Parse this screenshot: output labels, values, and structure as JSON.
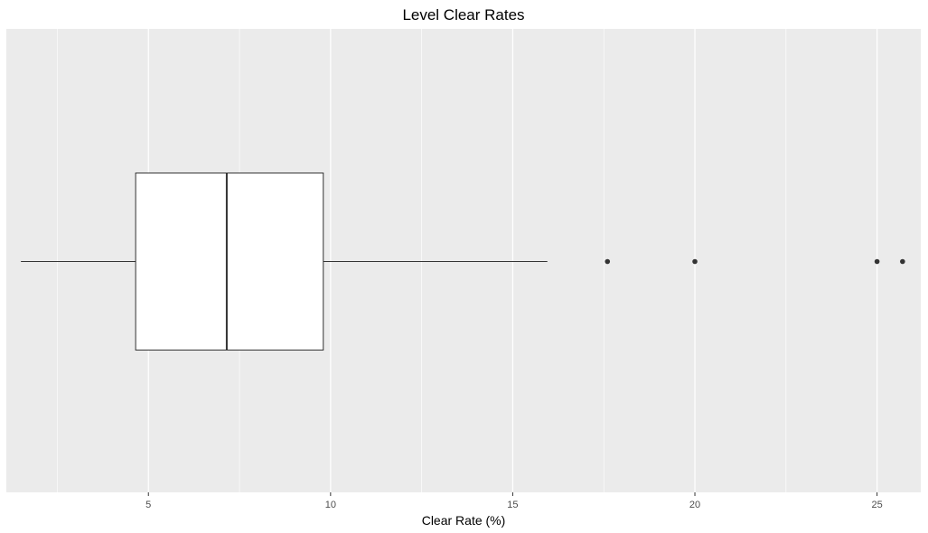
{
  "chart_data": {
    "type": "boxplot",
    "title": "Level Clear Rates",
    "xlabel": "Clear Rate (%)",
    "ylabel": "",
    "orientation": "horizontal",
    "xlim": [
      1.1,
      26.2
    ],
    "x_ticks": [
      5,
      10,
      15,
      20,
      25
    ],
    "x_tick_labels": [
      "5",
      "10",
      "15",
      "20",
      "25"
    ],
    "grid": true,
    "box": {
      "whisker_low": 1.5,
      "q1": 4.65,
      "median": 7.15,
      "q3": 9.8,
      "whisker_high": 15.95
    },
    "outliers": [
      17.6,
      20.0,
      25.0,
      25.7
    ],
    "colors": {
      "panel_background": "#ebebeb",
      "grid_major": "#ffffff",
      "box_fill": "#ffffff",
      "box_line": "#333333",
      "outlier": "#333333"
    }
  }
}
